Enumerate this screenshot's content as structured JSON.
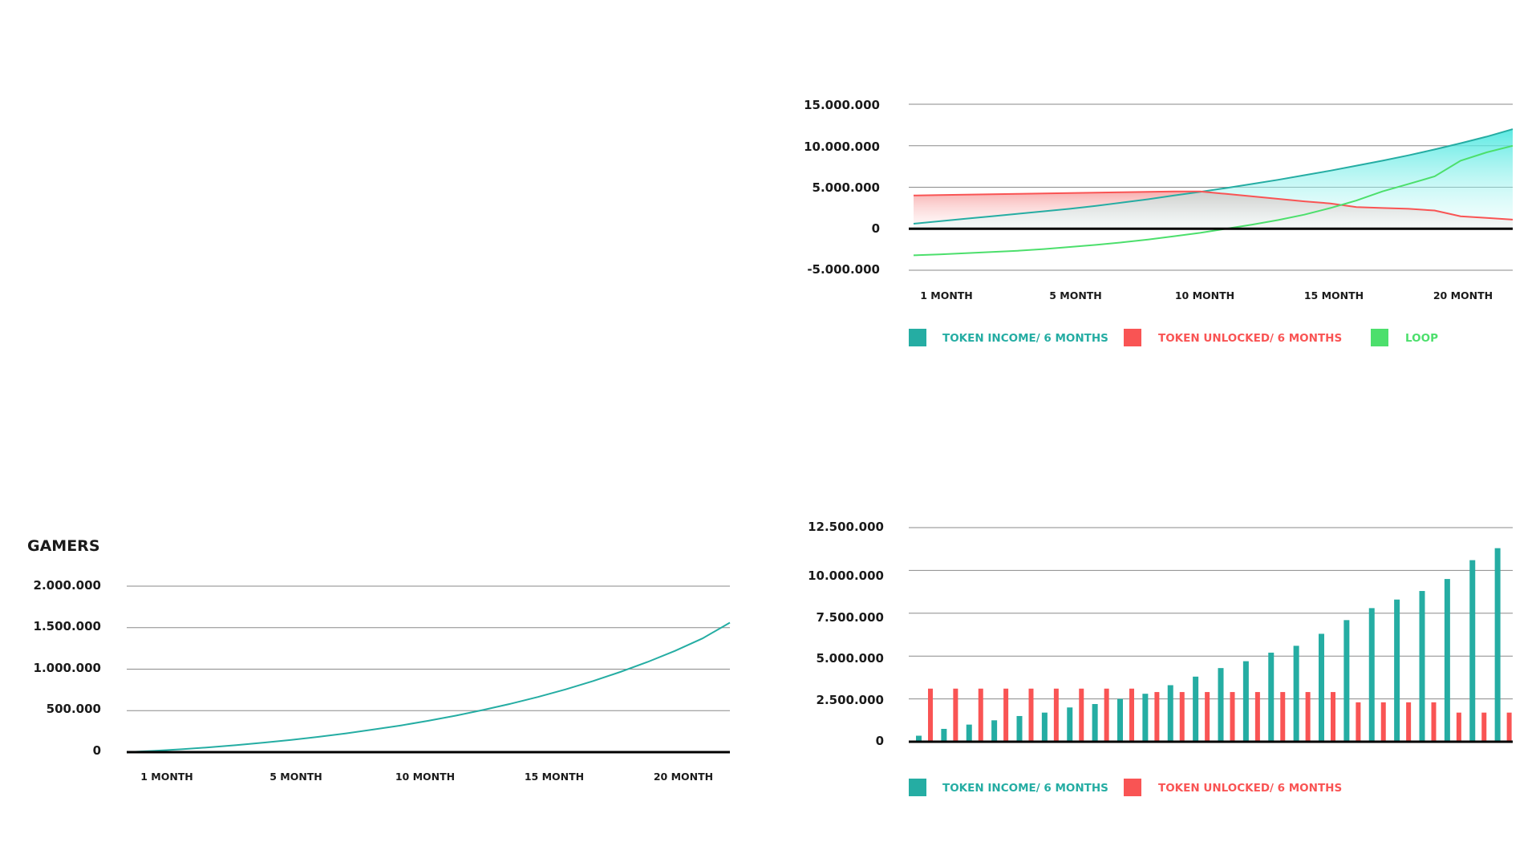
{
  "colors": {
    "income": "#25ada3",
    "unlocked": "#f95454",
    "loop": "#4cdf6c",
    "gamers": "#25ada3",
    "grid": "#8a8a8a",
    "axis": "#000000",
    "text": "#1a1a1a"
  },
  "chart_data": [
    {
      "id": "token-balance",
      "type": "area",
      "title": "",
      "y_ticks": [
        "15.000.000",
        "10.000.000",
        "5.000.000",
        "0",
        "-5.000.000"
      ],
      "ylim": [
        -5000000,
        15000000
      ],
      "x_ticks": [
        "1 MONTH",
        "5 MONTH",
        "10 MONTH",
        "15 MONTH",
        "20 MONTH"
      ],
      "legend": [
        "TOKEN INCOME/ 6 MONTHS",
        "TOKEN UNLOCKED/ 6 MONTHS",
        "LOOP"
      ],
      "legend_placement": "bottom",
      "grid": true,
      "x": [
        0,
        1,
        2,
        3,
        4,
        5,
        6,
        7,
        8,
        9,
        10,
        11,
        12,
        13,
        14,
        15,
        16,
        17,
        18,
        19,
        20,
        21,
        22,
        23
      ],
      "series": [
        {
          "name": "TOKEN INCOME/ 6 MONTHS",
          "values": [
            600000,
            900000,
            1200000,
            1500000,
            1800000,
            2100000,
            2400000,
            2750000,
            3150000,
            3550000,
            4000000,
            4450000,
            4900000,
            5400000,
            5900000,
            6450000,
            7000000,
            7600000,
            8200000,
            8850000,
            9550000,
            10300000,
            11100000,
            12000000
          ]
        },
        {
          "name": "TOKEN UNLOCKED/ 6 MONTHS",
          "values": [
            4000000,
            4050000,
            4100000,
            4150000,
            4200000,
            4250000,
            4300000,
            4350000,
            4400000,
            4450000,
            4500000,
            4500000,
            4200000,
            3900000,
            3600000,
            3300000,
            3050000,
            2600000,
            2500000,
            2400000,
            2200000,
            1500000,
            1300000,
            1100000
          ]
        },
        {
          "name": "LOOP",
          "values": [
            -3200000,
            -3100000,
            -2950000,
            -2800000,
            -2650000,
            -2450000,
            -2200000,
            -1950000,
            -1650000,
            -1300000,
            -900000,
            -500000,
            0,
            500000,
            1050000,
            1700000,
            2500000,
            3400000,
            4500000,
            5400000,
            6300000,
            8200000,
            9200000,
            10000000
          ]
        }
      ]
    },
    {
      "id": "gamers",
      "type": "line",
      "title": "GAMERS",
      "y_ticks": [
        "2.000.000",
        "1.500.000",
        "1.000.000",
        "500.000",
        "0"
      ],
      "ylim": [
        0,
        2000000
      ],
      "x_ticks": [
        "1 MONTH",
        "5 MONTH",
        "10 MONTH",
        "15 MONTH",
        "20 MONTH"
      ],
      "grid": true,
      "series": [
        {
          "values": [
            0,
            15000,
            35000,
            58000,
            85000,
            115000,
            148000,
            185000,
            226000,
            272000,
            322000,
            378000,
            440000,
            508000,
            583000,
            665000,
            756000,
            856000,
            966000,
            1087000,
            1220000,
            1370000,
            1560000
          ]
        }
      ]
    },
    {
      "id": "token-bars",
      "type": "bar",
      "title": "",
      "y_ticks": [
        "12.500.000",
        "10.000.000",
        "7.500.000",
        "5.000.000",
        "2.500.000",
        "0"
      ],
      "ylim": [
        0,
        12500000
      ],
      "legend": [
        "TOKEN INCOME/ 6 MONTHS",
        "TOKEN UNLOCKED/ 6 MONTHS"
      ],
      "legend_placement": "bottom",
      "grid": true,
      "categories": [
        "1",
        "2",
        "3",
        "4",
        "5",
        "6",
        "7",
        "8",
        "9",
        "10",
        "11",
        "12",
        "13",
        "14",
        "15",
        "16",
        "17",
        "18",
        "19",
        "20",
        "21",
        "22",
        "23",
        "24"
      ],
      "series": [
        {
          "name": "TOKEN INCOME/ 6 MONTHS",
          "values": [
            350000,
            750000,
            1000000,
            1250000,
            1500000,
            1700000,
            2000000,
            2200000,
            2500000,
            2800000,
            3300000,
            3800000,
            4300000,
            4700000,
            5200000,
            5600000,
            6300000,
            7100000,
            7800000,
            8300000,
            8800000,
            9500000,
            10600000,
            11300000
          ]
        },
        {
          "name": "TOKEN UNLOCKED/ 6 MONTHS",
          "values": [
            3100000,
            3100000,
            3100000,
            3100000,
            3100000,
            3100000,
            3100000,
            3100000,
            3100000,
            2900000,
            2900000,
            2900000,
            2900000,
            2900000,
            2900000,
            2900000,
            2900000,
            2300000,
            2300000,
            2300000,
            2300000,
            1700000,
            1700000,
            1700000
          ]
        }
      ]
    }
  ]
}
